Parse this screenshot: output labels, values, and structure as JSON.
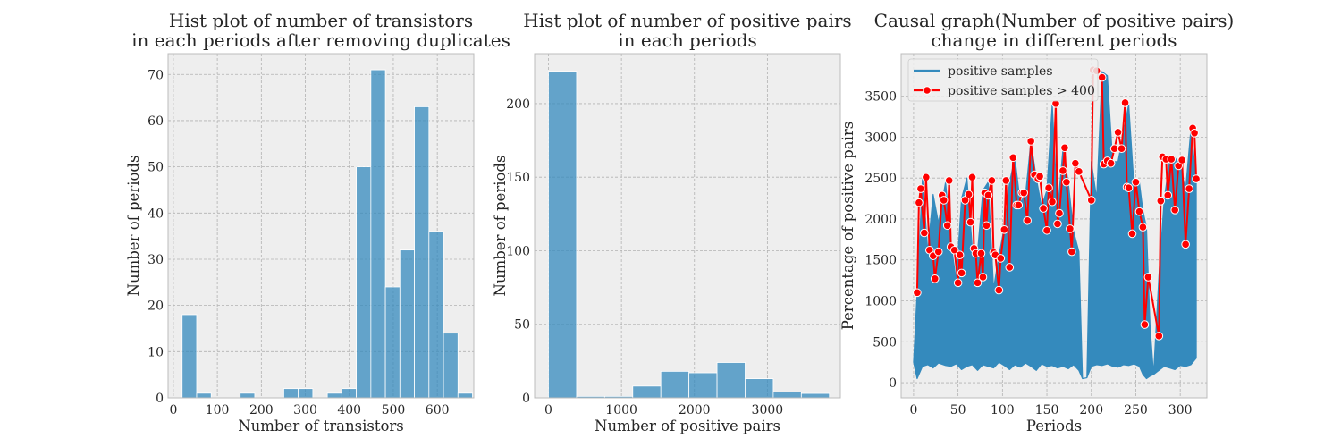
{
  "chart_data": [
    {
      "type": "bar",
      "title_lines": [
        "Hist plot of number of transistors",
        "in each periods after removing duplicates"
      ],
      "xlabel": "Number of transistors",
      "ylabel": "Number of periods",
      "xlim": [
        -12,
        683
      ],
      "ylim": [
        0,
        74.5
      ],
      "xticks": [
        0,
        100,
        200,
        300,
        400,
        500,
        600
      ],
      "yticks": [
        0,
        10,
        20,
        30,
        40,
        50,
        60,
        70
      ],
      "bin_width": 33,
      "bins": [
        {
          "x0": 20,
          "count": 18
        },
        {
          "x0": 53,
          "count": 1
        },
        {
          "x0": 86,
          "count": 0
        },
        {
          "x0": 119,
          "count": 0
        },
        {
          "x0": 152,
          "count": 1
        },
        {
          "x0": 185,
          "count": 0
        },
        {
          "x0": 218,
          "count": 0
        },
        {
          "x0": 251,
          "count": 2
        },
        {
          "x0": 284,
          "count": 2
        },
        {
          "x0": 317,
          "count": 0
        },
        {
          "x0": 350,
          "count": 1
        },
        {
          "x0": 383,
          "count": 2
        },
        {
          "x0": 416,
          "count": 50
        },
        {
          "x0": 449,
          "count": 71
        },
        {
          "x0": 482,
          "count": 24
        },
        {
          "x0": 515,
          "count": 32
        },
        {
          "x0": 548,
          "count": 63
        },
        {
          "x0": 581,
          "count": 36
        },
        {
          "x0": 614,
          "count": 14
        },
        {
          "x0": 647,
          "count": 1
        }
      ],
      "bar_color": "#348abd",
      "grid": true
    },
    {
      "type": "bar",
      "title_lines": [
        "Hist plot of number of positive pairs",
        "in each periods"
      ],
      "xlabel": "Number of positive pairs",
      "ylabel": "Number of periods",
      "xlim": [
        -190,
        4000
      ],
      "ylim": [
        0,
        234
      ],
      "xticks": [
        0,
        1000,
        2000,
        3000
      ],
      "yticks": [
        0,
        50,
        100,
        150,
        200
      ],
      "bin_width": 385,
      "bins": [
        {
          "x0": 0,
          "count": 222
        },
        {
          "x0": 385,
          "count": 1
        },
        {
          "x0": 770,
          "count": 1
        },
        {
          "x0": 1155,
          "count": 8
        },
        {
          "x0": 1540,
          "count": 18
        },
        {
          "x0": 1925,
          "count": 17
        },
        {
          "x0": 2310,
          "count": 24
        },
        {
          "x0": 2695,
          "count": 13
        },
        {
          "x0": 3080,
          "count": 4
        },
        {
          "x0": 3465,
          "count": 3
        }
      ],
      "bar_color": "#348abd",
      "grid": true
    },
    {
      "type": "line",
      "title_lines": [
        "Causal graph(Number of positive pairs)",
        "change in different periods"
      ],
      "xlabel": "Periods",
      "ylabel": "Percentage of positive pairs",
      "xlim": [
        -14,
        330
      ],
      "ylim": [
        -185,
        4020
      ],
      "xticks": [
        0,
        50,
        100,
        150,
        200,
        250,
        300
      ],
      "yticks": [
        0,
        500,
        1000,
        1500,
        2000,
        2500,
        3000,
        3500
      ],
      "legend_position": "top-left",
      "grid": true,
      "series": [
        {
          "name": "positive samples",
          "color": "#348abd",
          "style": "dense-line",
          "x": [
            0,
            4,
            10,
            16,
            22,
            28,
            36,
            42,
            48,
            54,
            60,
            66,
            72,
            78,
            84,
            90,
            96,
            102,
            108,
            114,
            120,
            126,
            132,
            138,
            144,
            150,
            156,
            162,
            168,
            174,
            180,
            186,
            190,
            195,
            200,
            206,
            212,
            218,
            224,
            230,
            236,
            242,
            248,
            254,
            258,
            262,
            266,
            270,
            276,
            282,
            288,
            294,
            300,
            306,
            312,
            318
          ],
          "low": [
            250,
            50,
            200,
            220,
            180,
            240,
            210,
            200,
            230,
            160,
            200,
            220,
            150,
            220,
            200,
            180,
            250,
            210,
            160,
            220,
            190,
            240,
            200,
            150,
            230,
            200,
            210,
            180,
            200,
            170,
            220,
            150,
            50,
            60,
            200,
            220,
            210,
            230,
            200,
            190,
            220,
            210,
            230,
            200,
            100,
            50,
            80,
            100,
            150,
            200,
            180,
            160,
            210,
            200,
            220,
            300
          ],
          "high": [
            250,
            1100,
            2500,
            1600,
            2300,
            1950,
            2450,
            1700,
            1250,
            2250,
            2500,
            1650,
            1600,
            2350,
            2450,
            1150,
            1550,
            1900,
            2450,
            2750,
            2200,
            2300,
            2950,
            2500,
            2150,
            2350,
            3400,
            2100,
            2850,
            2450,
            1850,
            1600,
            50,
            60,
            2700,
            2250,
            3800,
            3750,
            2700,
            2700,
            3050,
            3400,
            2400,
            2450,
            2100,
            1900,
            700,
            100,
            1300,
            2250,
            2700,
            2750,
            2650,
            2350,
            3100,
            2500
          ]
        },
        {
          "name": "positive samples > 400",
          "color": "#ff0000",
          "marker": "circle",
          "x": [
            4,
            6,
            8,
            12,
            14,
            18,
            22,
            24,
            28,
            32,
            34,
            38,
            40,
            42,
            46,
            50,
            52,
            54,
            58,
            62,
            64,
            66,
            68,
            70,
            72,
            76,
            78,
            80,
            82,
            84,
            88,
            90,
            92,
            96,
            98,
            102,
            104,
            108,
            112,
            116,
            118,
            122,
            124,
            128,
            132,
            136,
            140,
            142,
            146,
            150,
            152,
            156,
            160,
            162,
            164,
            168,
            170,
            172,
            176,
            178,
            182,
            186,
            200,
            202,
            206,
            212,
            214,
            218,
            222,
            226,
            230,
            234,
            238,
            240,
            242,
            246,
            250,
            254,
            258,
            260,
            264,
            276,
            278,
            280,
            284,
            286,
            290,
            294,
            298,
            302,
            306,
            310,
            314,
            316,
            318
          ],
          "y": [
            1100,
            2200,
            2370,
            1830,
            2510,
            1620,
            1550,
            1270,
            1600,
            2290,
            2230,
            1920,
            2470,
            1660,
            1620,
            1220,
            1560,
            1340,
            2230,
            2300,
            1960,
            2510,
            1640,
            1580,
            1220,
            1580,
            1290,
            2320,
            1920,
            2290,
            2470,
            1590,
            1560,
            1130,
            1520,
            1870,
            2470,
            1410,
            2750,
            2170,
            2170,
            2320,
            2320,
            1980,
            2950,
            2540,
            2490,
            2520,
            2130,
            1860,
            2380,
            2210,
            3410,
            1940,
            2070,
            2590,
            2870,
            2450,
            1880,
            1600,
            2680,
            2580,
            2230,
            3820,
            3810,
            3730,
            2670,
            2710,
            2680,
            2860,
            3060,
            2860,
            3420,
            2390,
            2380,
            1820,
            2450,
            2090,
            1900,
            710,
            1290,
            570,
            2220,
            2760,
            2730,
            2290,
            2730,
            2110,
            2650,
            2720,
            1690,
            2370,
            3110,
            3050,
            2490
          ]
        }
      ]
    }
  ]
}
